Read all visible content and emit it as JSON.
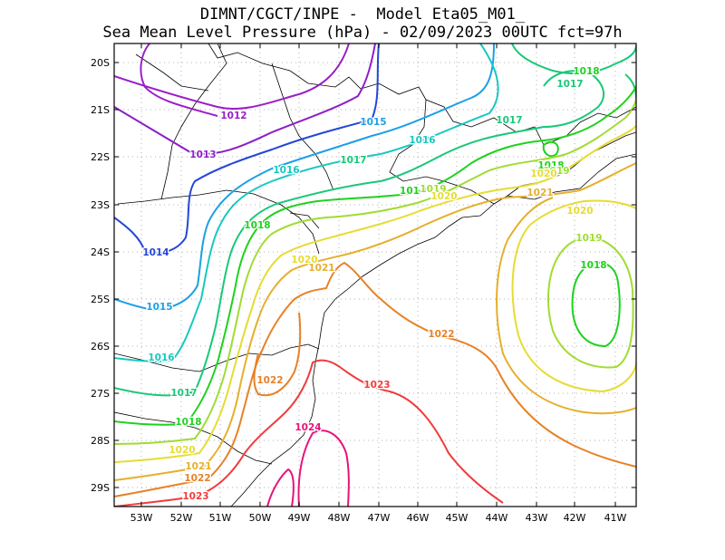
{
  "title": {
    "line1": "DIMNT/CGCT/INPE -  Model Eta05_M01_",
    "line2": "Sea Mean Level Pressure (hPa) - 02/09/2023 00UTC fct=97h"
  },
  "axes": {
    "lat_labels": [
      "20S",
      "21S",
      "22S",
      "23S",
      "24S",
      "25S",
      "26S",
      "27S",
      "28S",
      "29S"
    ],
    "lon_labels": [
      "53W",
      "52W",
      "51W",
      "50W",
      "49W",
      "48W",
      "47W",
      "46W",
      "45W",
      "44W",
      "43W",
      "42W",
      "41W"
    ]
  },
  "contour_colors": {
    "1012": "#9a1ec8",
    "1013": "#8c1ec8",
    "1014": "#2446d8",
    "1015": "#1ca0e6",
    "1016": "#18c8c0",
    "1017": "#18c878",
    "1018": "#1ed21e",
    "1019": "#a0dc32",
    "1020": "#e6dc32",
    "1021": "#e6af2d",
    "1022": "#e68228",
    "1023": "#f03c3c",
    "1024": "#e6147a"
  },
  "contour_labels": [
    {
      "text": "1012",
      "color": "#9a1ec8"
    },
    {
      "text": "1013",
      "color": "#8c1ec8"
    },
    {
      "text": "1014",
      "color": "#2446d8"
    },
    {
      "text": "1015",
      "color": "#1ca0e6"
    },
    {
      "text": "1015",
      "color": "#1ca0e6"
    },
    {
      "text": "1016",
      "color": "#18c8c0"
    },
    {
      "text": "1016",
      "color": "#18c8c0"
    },
    {
      "text": "1016",
      "color": "#18c8c0"
    },
    {
      "text": "1017",
      "color": "#18c878"
    },
    {
      "text": "1017",
      "color": "#18c878"
    },
    {
      "text": "1017",
      "color": "#18c878"
    },
    {
      "text": "1017",
      "color": "#18c878"
    },
    {
      "text": "1018",
      "color": "#1ed21e"
    },
    {
      "text": "1018",
      "color": "#1ed21e"
    },
    {
      "text": "1018",
      "color": "#1ed21e"
    },
    {
      "text": "1018",
      "color": "#1ed21e"
    },
    {
      "text": "1018",
      "color": "#1ed21e"
    },
    {
      "text": "101",
      "color": "#1ed21e"
    },
    {
      "text": "1019",
      "color": "#a0dc32"
    },
    {
      "text": "1019",
      "color": "#a0dc32"
    },
    {
      "text": "1019",
      "color": "#a0dc32"
    },
    {
      "text": "1020",
      "color": "#e6dc32"
    },
    {
      "text": "1020",
      "color": "#e6dc32"
    },
    {
      "text": "1020",
      "color": "#e6dc32"
    },
    {
      "text": "1020",
      "color": "#e6dc32"
    },
    {
      "text": "1020",
      "color": "#e6dc32"
    },
    {
      "text": "1021",
      "color": "#e6af2d"
    },
    {
      "text": "1021",
      "color": "#e6af2d"
    },
    {
      "text": "1021",
      "color": "#e6af2d"
    },
    {
      "text": "1022",
      "color": "#e68228"
    },
    {
      "text": "1022",
      "color": "#e68228"
    },
    {
      "text": "1022",
      "color": "#e68228"
    },
    {
      "text": "1023",
      "color": "#f03c3c"
    },
    {
      "text": "1023",
      "color": "#f03c3c"
    },
    {
      "text": "1024",
      "color": "#e6147a"
    }
  ]
}
